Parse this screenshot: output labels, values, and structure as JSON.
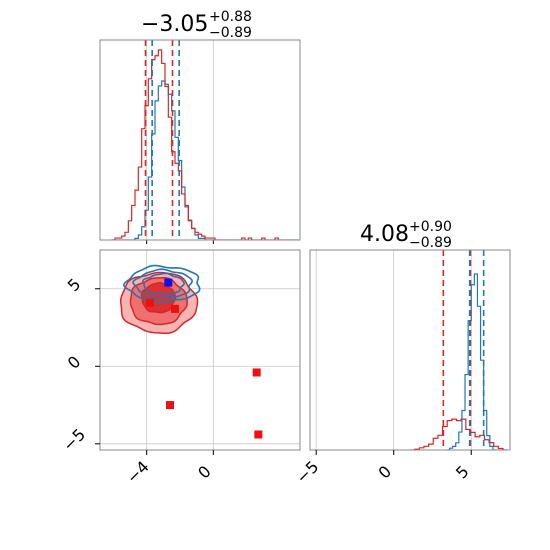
{
  "chart_data": {
    "type": "corner",
    "parameters": [
      {
        "median_text": "−3.05",
        "upper_text": "+0.88",
        "lower_text": "−0.89",
        "xlim": [
          -6.8,
          5.2
        ],
        "ticks": [
          -4,
          0
        ],
        "tick_labels": [
          "−4",
          "0"
        ]
      },
      {
        "median_text": "4.08",
        "upper_text": "+0.90",
        "lower_text": "−0.89",
        "xlim": [
          -5.4,
          7.5
        ],
        "ticks": [
          -5,
          0,
          5
        ],
        "tick_labels": [
          "−5",
          "0",
          "5"
        ]
      }
    ],
    "marginal_1": {
      "blue_quantiles": [
        -3.67,
        -2.05
      ],
      "red_quantiles": [
        -4.07,
        -2.45
      ],
      "blue_hist": {
        "x": [
          -6.0,
          -5.8,
          -5.6,
          -5.4,
          -5.2,
          -5.0,
          -4.8,
          -4.6,
          -4.4,
          -4.2,
          -4.0,
          -3.8,
          -3.6,
          -3.4,
          -3.2,
          -3.0,
          -2.8,
          -2.6,
          -2.4,
          -2.2,
          -2.0,
          -1.8,
          -1.6,
          -1.4,
          -1.2,
          -1.0,
          -0.8,
          -0.6,
          -0.4,
          -0.2,
          0.0
        ],
        "counts": [
          0,
          0,
          0,
          0,
          0,
          0,
          0,
          1,
          3,
          8,
          18,
          38,
          64,
          84,
          93,
          96,
          94,
          88,
          78,
          62,
          48,
          32,
          20,
          12,
          7,
          3,
          1,
          1,
          0,
          0,
          0
        ]
      },
      "red_hist": {
        "x": [
          -6.0,
          -5.8,
          -5.6,
          -5.4,
          -5.2,
          -5.0,
          -4.8,
          -4.6,
          -4.4,
          -4.2,
          -4.0,
          -3.8,
          -3.6,
          -3.4,
          -3.2,
          -3.0,
          -2.8,
          -2.6,
          -2.4,
          -2.2,
          -2.0,
          -1.8,
          -1.6,
          -1.4,
          -1.2,
          -1.0,
          -0.8,
          -0.6,
          -0.4,
          -0.2,
          0.0,
          0.2,
          0.4,
          0.6,
          0.8,
          1.0,
          1.2,
          1.4,
          1.6,
          1.8,
          2.0,
          2.2,
          2.4,
          2.6,
          2.8,
          3.0,
          3.2,
          3.4,
          3.6,
          3.8,
          4.0,
          4.2,
          4.4,
          4.6,
          4.8,
          5.0
        ],
        "counts": [
          0,
          1,
          1,
          2,
          4,
          10,
          18,
          26,
          38,
          58,
          70,
          84,
          94,
          96,
          99,
          92,
          80,
          64,
          46,
          40,
          36,
          24,
          18,
          10,
          6,
          4,
          3,
          2,
          1,
          1,
          1,
          0,
          0,
          0,
          0,
          0,
          0,
          0,
          0,
          1,
          0,
          1,
          0,
          0,
          0,
          1,
          0,
          0,
          0,
          1,
          0,
          0,
          0,
          0,
          0,
          0
        ]
      }
    },
    "marginal_2": {
      "blue_quantiles": [
        4.9,
        5.8
      ],
      "red_quantiles": [
        3.2,
        4.95
      ],
      "blue_hist": {
        "x": [
          3.5,
          3.7,
          3.9,
          4.1,
          4.3,
          4.5,
          4.7,
          4.9,
          5.1,
          5.3,
          5.5,
          5.7,
          5.9,
          6.1,
          6.3,
          6.5
        ],
        "counts": [
          0,
          1,
          2,
          4,
          10,
          22,
          42,
          72,
          92,
          98,
          80,
          50,
          22,
          8,
          2,
          0
        ]
      },
      "red_hist": {
        "x": [
          1.2,
          1.5,
          1.8,
          2.1,
          2.4,
          2.7,
          3.0,
          3.3,
          3.6,
          3.9,
          4.2,
          4.5,
          4.8,
          5.1,
          5.4,
          5.7,
          6.0,
          6.3,
          6.6,
          6.9,
          7.2
        ],
        "counts": [
          0,
          1,
          3,
          5,
          8,
          16,
          20,
          32,
          40,
          42,
          40,
          42,
          28,
          24,
          18,
          20,
          14,
          10,
          5,
          2,
          0
        ]
      }
    },
    "joint": {
      "blue_contours": [
        {
          "center": [
            -3.0,
            5.3
          ],
          "radii": [
            1.2,
            0.65
          ]
        },
        {
          "center": [
            -3.0,
            5.3
          ],
          "radii": [
            1.7,
            0.9
          ]
        },
        {
          "center": [
            -3.0,
            5.3
          ],
          "radii": [
            2.2,
            1.15
          ]
        }
      ],
      "red_contours": [
        {
          "center": [
            -3.3,
            4.4
          ],
          "radii": [
            1.0,
            0.95
          ],
          "fill": "#dd2b2b"
        },
        {
          "center": [
            -3.3,
            4.2
          ],
          "radii": [
            1.7,
            1.5
          ],
          "fill": "#ef6d6d"
        },
        {
          "center": [
            -3.3,
            4.1
          ],
          "radii": [
            2.3,
            1.95
          ],
          "fill": "#f6b0b0"
        }
      ],
      "blue_marker": [
        -2.7,
        5.4
      ],
      "red_markers": [
        [
          -3.8,
          4.1
        ],
        [
          -2.3,
          3.7
        ],
        [
          -2.6,
          -2.5
        ],
        [
          2.6,
          -0.4
        ],
        [
          2.7,
          -4.4
        ]
      ],
      "scatter_count": 90
    },
    "colors": {
      "blue": "#1f77b4",
      "red": "#d62728",
      "frame": "#888888",
      "grid": "#c8c8c8"
    }
  }
}
